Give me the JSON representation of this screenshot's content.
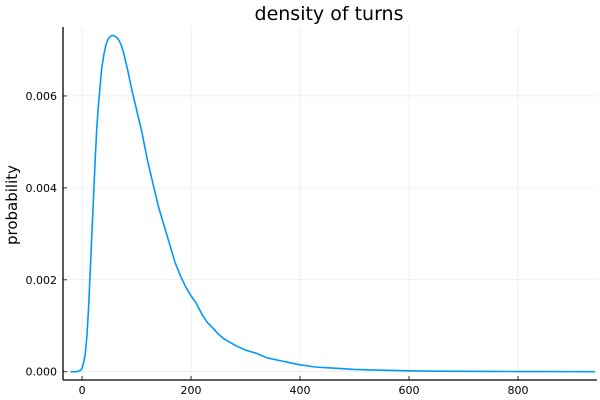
{
  "chart_data": {
    "type": "line",
    "title": "density of turns",
    "xlabel": "",
    "ylabel": "probability",
    "xlim": [
      -35,
      945
    ],
    "ylim": [
      -0.00018,
      0.0075
    ],
    "xticks": [
      0,
      200,
      400,
      600,
      800
    ],
    "yticks": [
      0.0,
      0.002,
      0.004,
      0.006
    ],
    "ytick_labels": [
      "0.000",
      "0.002",
      "0.004",
      "0.006"
    ],
    "grid": true,
    "legend": "none",
    "series": [
      {
        "color": "#009af9",
        "x": [
          -20,
          -10,
          -3,
          0,
          3,
          6,
          9,
          12,
          15,
          18,
          21,
          24,
          27,
          30,
          33,
          36,
          40,
          44,
          48,
          52,
          56,
          60,
          63,
          66,
          69,
          72,
          76,
          80,
          84,
          88,
          92,
          96,
          100,
          110,
          120,
          130,
          140,
          150,
          160,
          170,
          180,
          190,
          200,
          210,
          220,
          230,
          240,
          250,
          260,
          280,
          300,
          320,
          340,
          360,
          380,
          400,
          430,
          460,
          500,
          530,
          560,
          600,
          650,
          700,
          750,
          800,
          850,
          900,
          940
        ],
        "y": [
          0.0,
          0.0,
          3e-05,
          8e-05,
          0.0002,
          0.0004,
          0.0008,
          0.0014,
          0.0022,
          0.003,
          0.0038,
          0.0046,
          0.0053,
          0.0058,
          0.0062,
          0.0066,
          0.0069,
          0.00712,
          0.00724,
          0.0073,
          0.00732,
          0.0073,
          0.00728,
          0.00724,
          0.00718,
          0.0071,
          0.00695,
          0.00675,
          0.00655,
          0.00632,
          0.0061,
          0.0059,
          0.0057,
          0.0052,
          0.0046,
          0.0041,
          0.0036,
          0.0032,
          0.0028,
          0.0024,
          0.0021,
          0.00185,
          0.00165,
          0.00148,
          0.00125,
          0.00107,
          0.00095,
          0.00082,
          0.00072,
          0.00058,
          0.00047,
          0.0004,
          0.0003,
          0.00025,
          0.0002,
          0.00015,
          0.0001,
          8e-05,
          5e-05,
          4e-05,
          3e-05,
          2e-05,
          1.2e-05,
          8e-06,
          6e-06,
          4e-06,
          3e-06,
          2e-06,
          1e-06
        ]
      }
    ]
  }
}
